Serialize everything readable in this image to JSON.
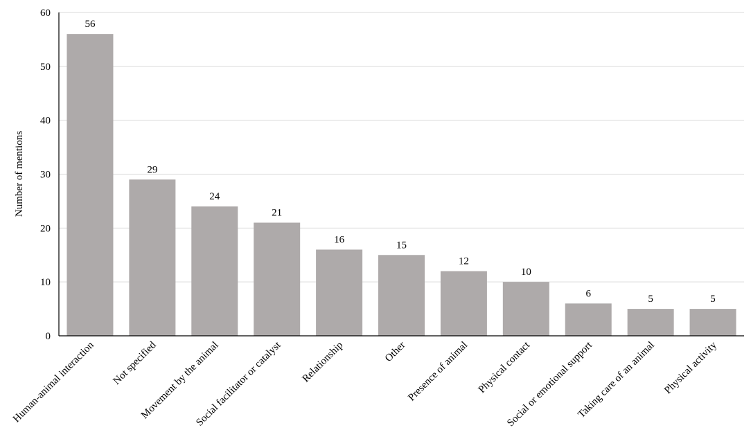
{
  "chart_data": {
    "type": "bar",
    "categories": [
      "Human-animal interaction",
      "Not specified",
      "Movement by the animal",
      "Social facilitator or catalyst",
      "Relationship",
      "Other",
      "Presence of animal",
      "Physical contact",
      "Social or emotional support",
      "Taking care of an animal",
      "Physical activity"
    ],
    "values": [
      56,
      29,
      24,
      21,
      16,
      15,
      12,
      10,
      6,
      5,
      5
    ],
    "data_labels": [
      "56",
      "29",
      "24",
      "21",
      "16",
      "15",
      "12",
      "10",
      "6",
      "5",
      "5"
    ],
    "title": "",
    "xlabel": "",
    "ylabel": "Number of mentions",
    "ylim": [
      0,
      60
    ],
    "yticks": [
      0,
      10,
      20,
      30,
      40,
      50,
      60
    ],
    "ytick_labels": [
      "0",
      "10",
      "20",
      "30",
      "40",
      "50",
      "60"
    ],
    "grid": true,
    "legend": "none",
    "colors": {
      "bar": "#aeaaaa",
      "grid": "#d9d9d9",
      "axis": "#000000"
    }
  }
}
